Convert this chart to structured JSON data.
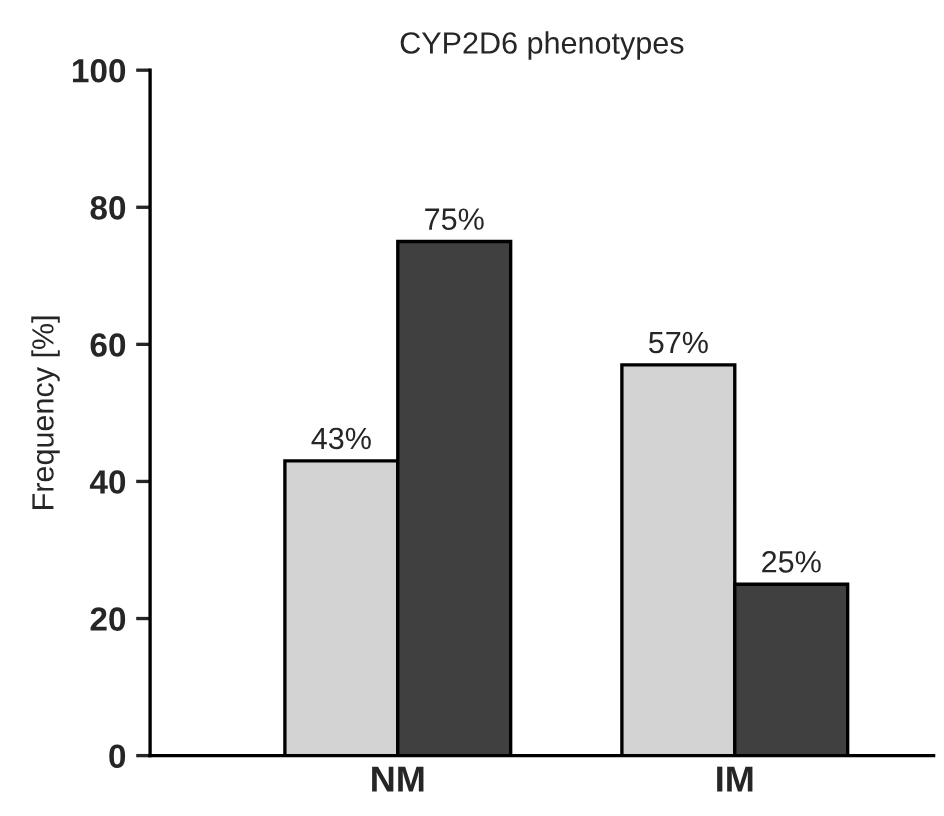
{
  "chart_data": {
    "type": "bar",
    "title": "CYP2D6 phenotypes",
    "ylabel": "Frequency [%]",
    "categories": [
      "NM",
      "IM"
    ],
    "series": [
      {
        "color": "#d3d3d3",
        "values": [
          43,
          57
        ],
        "value_labels": [
          "43%",
          "57%"
        ]
      },
      {
        "color": "#404040",
        "values": [
          75,
          25
        ],
        "value_labels": [
          "75%",
          "25%"
        ]
      }
    ],
    "ylim": [
      0,
      100
    ],
    "yticks": [
      0,
      20,
      40,
      60,
      80,
      100
    ],
    "grid": false
  }
}
